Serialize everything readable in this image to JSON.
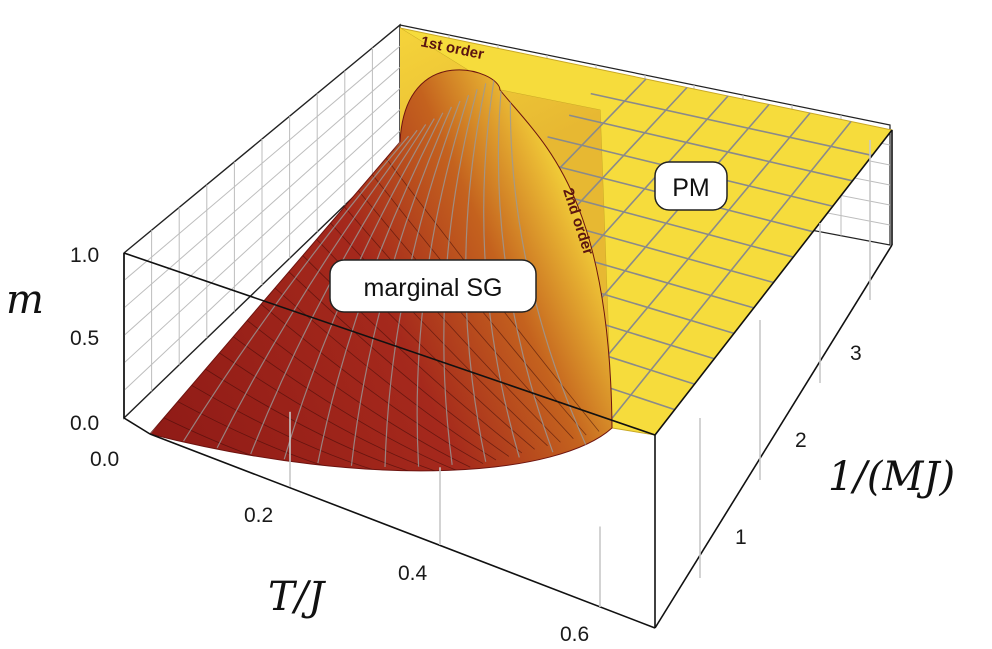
{
  "chart_data": {
    "type": "surface3d",
    "axes": {
      "x": {
        "label": "T/J",
        "ticks": [
          "0.0",
          "0.2",
          "0.4",
          "0.6"
        ],
        "range": [
          0,
          0.7
        ]
      },
      "y": {
        "label": "1/(MJ)",
        "ticks": [
          "1",
          "2",
          "3"
        ],
        "range": [
          0,
          3.8
        ]
      },
      "z": {
        "label": "m",
        "ticks": [
          "0.0",
          "0.5",
          "1.0"
        ],
        "range": [
          0,
          1
        ]
      }
    },
    "regions": [
      {
        "label": "marginal SG",
        "color": "#b0281f"
      },
      {
        "label": "PM",
        "color": "#f6dc3c"
      }
    ],
    "transitions": [
      {
        "label": "1st order"
      },
      {
        "label": "2nd order"
      }
    ],
    "colors": {
      "low": "#8e1a16",
      "mid": "#c4621e",
      "high": "#f7e03c"
    },
    "grid": true
  }
}
